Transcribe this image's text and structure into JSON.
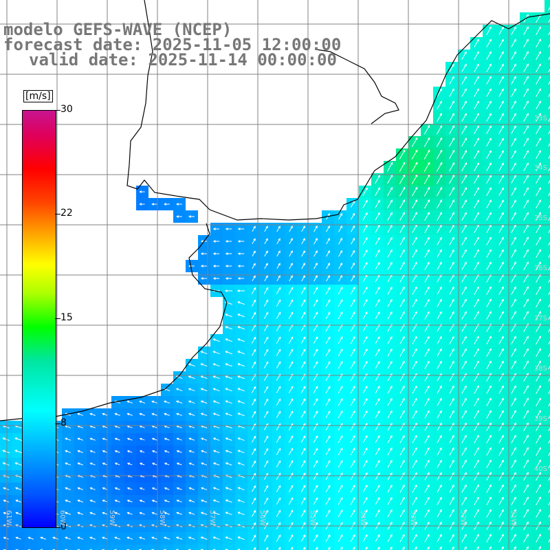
{
  "title": {
    "model": "modelo GEFS-WAVE (NCEP)",
    "forecast": "forecast date: 2025-11-05 12:00:00",
    "valid": "valid date: 2025-11-14 00:00:00"
  },
  "colorbar": {
    "unit": "[m/s]",
    "ticks": [
      "30",
      "22",
      "15",
      "8",
      "0"
    ],
    "tick_values": [
      30,
      22,
      15,
      8,
      0
    ],
    "range": [
      0,
      30
    ]
  },
  "latitude_labels": [
    "33S",
    "34S",
    "35S",
    "36S",
    "37S",
    "38S",
    "39S",
    "40S"
  ],
  "longitude_labels": [
    "61W",
    "60W",
    "59W",
    "58W",
    "57W",
    "56W",
    "55W",
    "54W",
    "53W",
    "52W",
    "51W"
  ],
  "colors": {
    "land": "#ffffff",
    "coastline": "#000000",
    "grid": "#808080",
    "arrows": "#ffffff"
  }
}
